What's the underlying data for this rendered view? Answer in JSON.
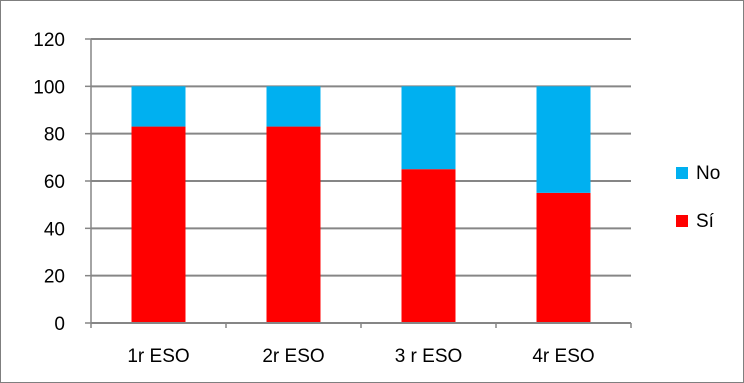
{
  "chart_data": {
    "type": "bar",
    "stacked": true,
    "categories": [
      "1r ESO",
      "2r ESO",
      "3 r ESO",
      "4r ESO"
    ],
    "series": [
      {
        "name": "Sí",
        "values": [
          83,
          83,
          65,
          55
        ],
        "color": "#ff0000"
      },
      {
        "name": "No",
        "values": [
          17,
          17,
          35,
          45
        ],
        "color": "#00b0f0"
      }
    ],
    "ylim": [
      0,
      120
    ],
    "yticks": [
      "0",
      "20",
      "40",
      "60",
      "80",
      "100",
      "120"
    ],
    "grid": true,
    "legend": "right",
    "legend_order": [
      "No",
      "Sí"
    ]
  }
}
